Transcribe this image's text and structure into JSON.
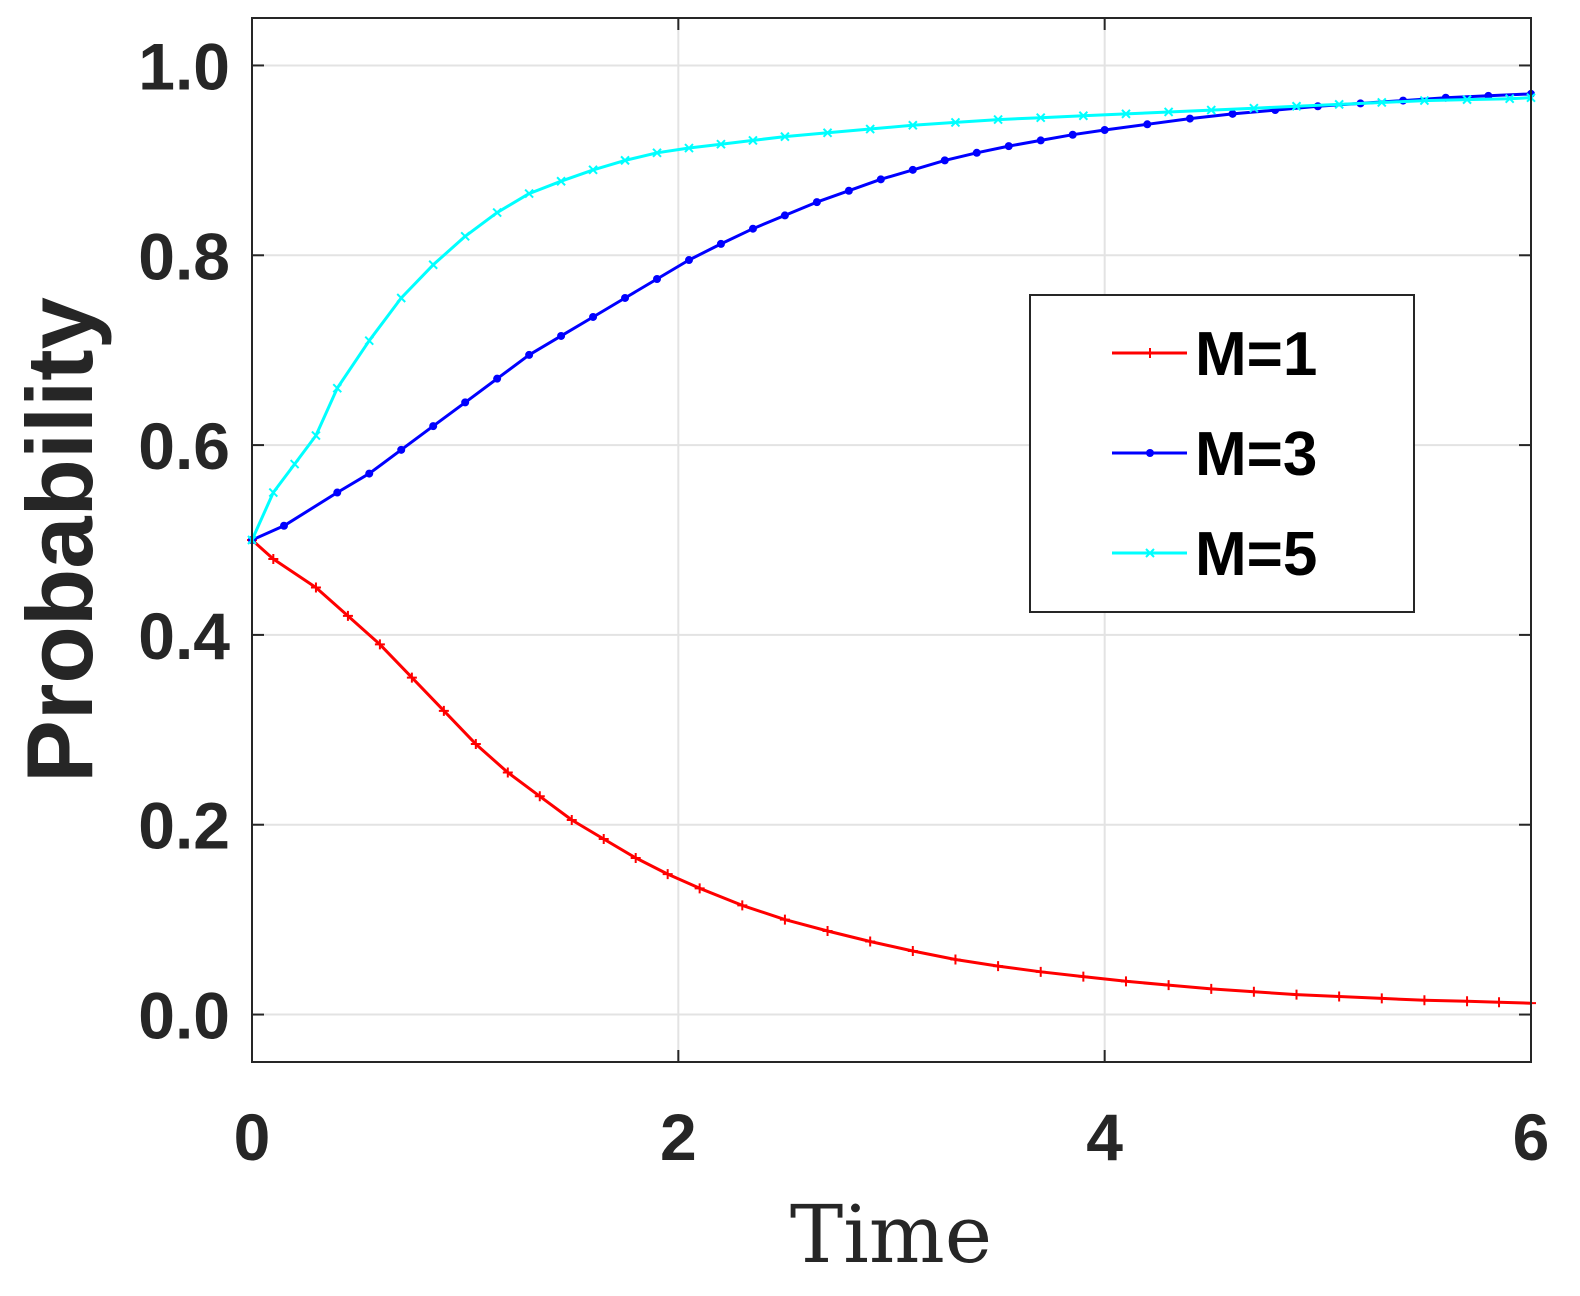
{
  "chart_data": {
    "type": "line",
    "xlabel": "Time",
    "ylabel": "Probability",
    "xlim": [
      0,
      6
    ],
    "ylim": [
      -0.05,
      1.05
    ],
    "x_ticks": [
      0,
      2,
      4,
      6
    ],
    "x_tick_labels": [
      "0",
      "2",
      "4",
      "6"
    ],
    "y_ticks": [
      0.0,
      0.2,
      0.4,
      0.6,
      0.8,
      1.0
    ],
    "y_tick_labels": [
      "0.0",
      "0.2",
      "0.4",
      "0.6",
      "0.8",
      "1.0"
    ],
    "grid": true,
    "legend_position": "right",
    "series": [
      {
        "name": "M=1",
        "color": "#ff0000",
        "marker": "plus",
        "x": [
          0,
          0.1,
          0.3,
          0.45,
          0.6,
          0.75,
          0.9,
          1.05,
          1.2,
          1.35,
          1.5,
          1.65,
          1.8,
          1.95,
          2.1,
          2.3,
          2.5,
          2.7,
          2.9,
          3.1,
          3.3,
          3.5,
          3.7,
          3.9,
          4.1,
          4.3,
          4.5,
          4.7,
          4.9,
          5.1,
          5.3,
          5.5,
          5.7,
          5.85,
          6.0
        ],
        "y": [
          0.5,
          0.48,
          0.45,
          0.42,
          0.39,
          0.355,
          0.32,
          0.285,
          0.255,
          0.23,
          0.205,
          0.185,
          0.165,
          0.148,
          0.133,
          0.115,
          0.1,
          0.088,
          0.077,
          0.067,
          0.058,
          0.051,
          0.045,
          0.04,
          0.035,
          0.031,
          0.027,
          0.024,
          0.021,
          0.019,
          0.017,
          0.015,
          0.014,
          0.013,
          0.012
        ]
      },
      {
        "name": "M=3",
        "color": "#0000ff",
        "marker": "dot",
        "x": [
          0,
          0.15,
          0.4,
          0.55,
          0.7,
          0.85,
          1.0,
          1.15,
          1.3,
          1.45,
          1.6,
          1.75,
          1.9,
          2.05,
          2.2,
          2.35,
          2.5,
          2.65,
          2.8,
          2.95,
          3.1,
          3.25,
          3.4,
          3.55,
          3.7,
          3.85,
          4.0,
          4.2,
          4.4,
          4.6,
          4.8,
          5.0,
          5.2,
          5.4,
          5.6,
          5.8,
          6.0
        ],
        "y": [
          0.5,
          0.515,
          0.55,
          0.57,
          0.595,
          0.62,
          0.645,
          0.67,
          0.695,
          0.715,
          0.735,
          0.755,
          0.775,
          0.795,
          0.812,
          0.828,
          0.842,
          0.856,
          0.868,
          0.88,
          0.89,
          0.9,
          0.908,
          0.915,
          0.921,
          0.927,
          0.932,
          0.938,
          0.944,
          0.949,
          0.953,
          0.957,
          0.96,
          0.963,
          0.966,
          0.968,
          0.97
        ]
      },
      {
        "name": "M=5",
        "color": "#00ffff",
        "marker": "x",
        "x": [
          0,
          0.1,
          0.2,
          0.3,
          0.4,
          0.55,
          0.7,
          0.85,
          1.0,
          1.15,
          1.3,
          1.45,
          1.6,
          1.75,
          1.9,
          2.05,
          2.2,
          2.35,
          2.5,
          2.7,
          2.9,
          3.1,
          3.3,
          3.5,
          3.7,
          3.9,
          4.1,
          4.3,
          4.5,
          4.7,
          4.9,
          5.1,
          5.3,
          5.5,
          5.7,
          5.9,
          6.0
        ],
        "y": [
          0.5,
          0.55,
          0.58,
          0.61,
          0.66,
          0.71,
          0.755,
          0.79,
          0.82,
          0.845,
          0.865,
          0.878,
          0.89,
          0.9,
          0.908,
          0.913,
          0.917,
          0.921,
          0.925,
          0.929,
          0.933,
          0.937,
          0.94,
          0.943,
          0.945,
          0.947,
          0.949,
          0.951,
          0.953,
          0.955,
          0.957,
          0.959,
          0.961,
          0.963,
          0.964,
          0.965,
          0.966
        ]
      }
    ]
  }
}
